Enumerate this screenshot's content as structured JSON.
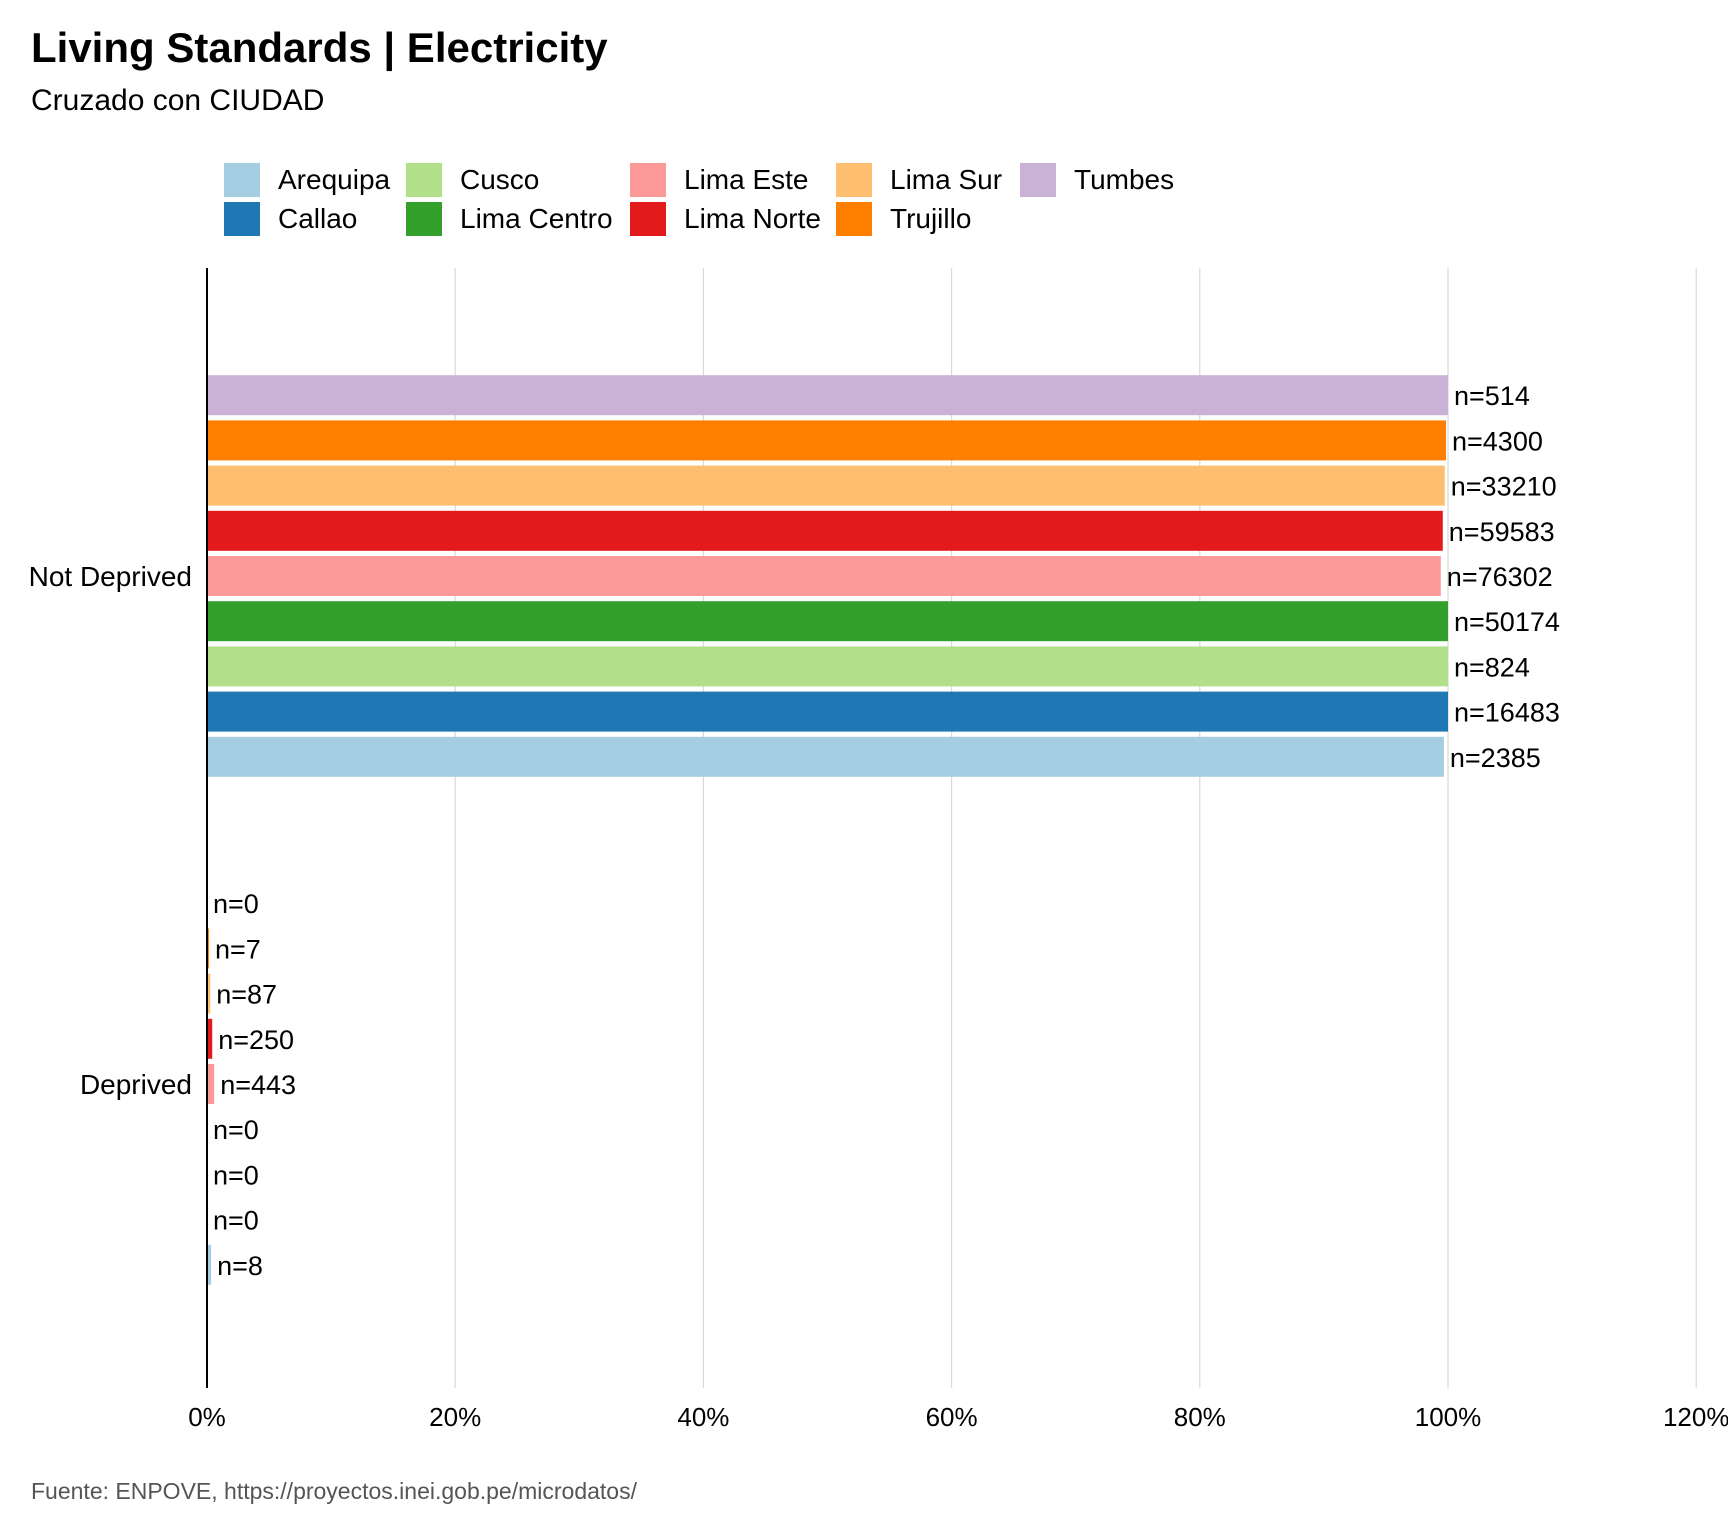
{
  "title": "Living Standards | Electricity",
  "subtitle": "Cruzado con CIUDAD",
  "caption": "Fuente:  ENPOVE, https://proyectos.inei.gob.pe/microdatos/",
  "chart_data": {
    "type": "bar",
    "orientation": "horizontal",
    "grid": true,
    "legend_position": "top",
    "x_ticks": [
      "0%",
      "20%",
      "40%",
      "60%",
      "80%",
      "100%",
      "120%"
    ],
    "xlim": [
      0,
      1.2
    ],
    "categories": [
      "Not Deprived",
      "Deprived"
    ],
    "series": [
      {
        "name": "Arequipa",
        "color": "#A6CEE3",
        "values": [
          0.9967,
          0.0033
        ],
        "labels": [
          "n=2385",
          "n=8"
        ]
      },
      {
        "name": "Callao",
        "color": "#1F78B4",
        "values": [
          1.0,
          0.0
        ],
        "labels": [
          "n=16483",
          "n=0"
        ]
      },
      {
        "name": "Cusco",
        "color": "#B2DF8A",
        "values": [
          1.0,
          0.0
        ],
        "labels": [
          "n=824",
          "n=0"
        ]
      },
      {
        "name": "Lima Centro",
        "color": "#33A02C",
        "values": [
          1.0,
          0.0
        ],
        "labels": [
          "n=50174",
          "n=0"
        ]
      },
      {
        "name": "Lima Este",
        "color": "#FB9A99",
        "values": [
          0.9942,
          0.0058
        ],
        "labels": [
          "n=76302",
          "n=443"
        ]
      },
      {
        "name": "Lima Norte",
        "color": "#E31A1C",
        "values": [
          0.9958,
          0.0042
        ],
        "labels": [
          "n=59583",
          "n=250"
        ]
      },
      {
        "name": "Lima Sur",
        "color": "#FDBF6F",
        "values": [
          0.9974,
          0.0026
        ],
        "labels": [
          "n=33210",
          "n=87"
        ]
      },
      {
        "name": "Trujillo",
        "color": "#FF7F00",
        "values": [
          0.9984,
          0.0016
        ],
        "labels": [
          "n=4300",
          "n=7"
        ]
      },
      {
        "name": "Tumbes",
        "color": "#CAB2D6",
        "values": [
          1.0,
          0.0
        ],
        "labels": [
          "n=514",
          "n=0"
        ]
      }
    ]
  }
}
